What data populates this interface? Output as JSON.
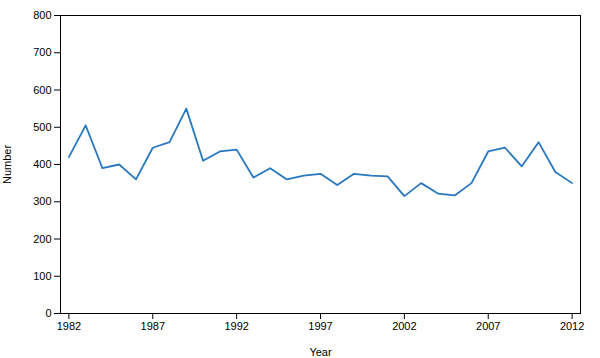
{
  "chart_data": {
    "type": "line",
    "x": [
      1982,
      1983,
      1984,
      1985,
      1986,
      1987,
      1988,
      1989,
      1990,
      1991,
      1992,
      1993,
      1994,
      1995,
      1996,
      1997,
      1998,
      1999,
      2000,
      2001,
      2002,
      2003,
      2004,
      2005,
      2006,
      2007,
      2008,
      2009,
      2010,
      2011,
      2012
    ],
    "values": [
      420,
      505,
      390,
      400,
      360,
      445,
      460,
      550,
      410,
      435,
      440,
      365,
      390,
      360,
      370,
      375,
      345,
      375,
      370,
      368,
      315,
      350,
      322,
      317,
      350,
      435,
      445,
      395,
      460,
      380,
      350
    ],
    "color": "#2878c0",
    "xlabel": "Year",
    "ylabel": "Number",
    "xlim": [
      1981.5,
      2012.5
    ],
    "ylim": [
      0,
      800
    ],
    "xticks": [
      1982,
      1987,
      1992,
      1997,
      2002,
      2007,
      2012
    ],
    "yticks": [
      0,
      100,
      200,
      300,
      400,
      500,
      600,
      700,
      800
    ],
    "grid": false
  }
}
